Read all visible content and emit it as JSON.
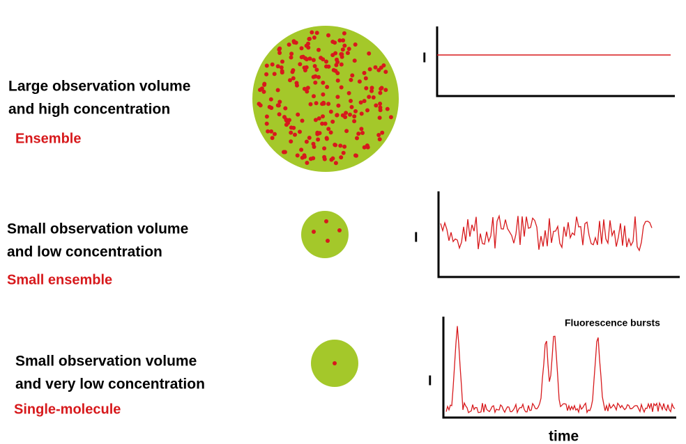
{
  "rows": [
    {
      "label_line1": "Large observation volume",
      "label_line2": "and high concentration",
      "regime": "Ensemble",
      "axis_label": "I"
    },
    {
      "label_line1": "Small observation volume",
      "label_line2": "and low concentration",
      "regime": "Small ensemble",
      "axis_label": "I"
    },
    {
      "label_line1": "Small observation volume",
      "label_line2": "and very low concentration",
      "regime": "Single-molecule",
      "axis_label": "I"
    }
  ],
  "annotation": "Fluorescence bursts",
  "x_axis_label": "time"
}
